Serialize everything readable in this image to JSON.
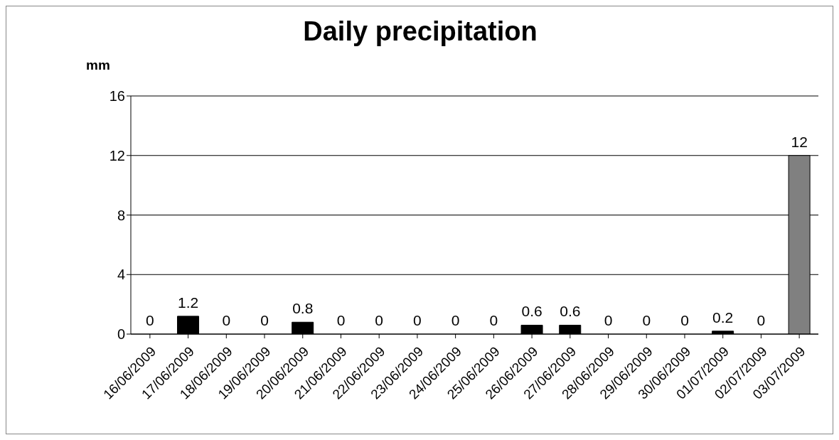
{
  "chart_data": {
    "type": "bar",
    "title": "Daily precipitation",
    "ylabel": "mm",
    "categories": [
      "16/06/2009",
      "17/06/2009",
      "18/06/2009",
      "19/06/2009",
      "20/06/2009",
      "21/06/2009",
      "22/06/2009",
      "23/06/2009",
      "24/06/2009",
      "25/06/2009",
      "26/06/2009",
      "27/06/2009",
      "28/06/2009",
      "29/06/2009",
      "30/06/2009",
      "01/07/2009",
      "02/07/2009",
      "03/07/2009"
    ],
    "values": [
      0,
      1.2,
      0,
      0,
      0.8,
      0,
      0,
      0,
      0,
      0,
      0.6,
      0.6,
      0,
      0,
      0,
      0.2,
      0,
      12
    ],
    "colors": [
      "#000000",
      "#000000",
      "#000000",
      "#000000",
      "#000000",
      "#000000",
      "#000000",
      "#000000",
      "#000000",
      "#000000",
      "#000000",
      "#000000",
      "#000000",
      "#000000",
      "#000000",
      "#000000",
      "#000000",
      "#808080"
    ],
    "ylim": [
      0,
      16
    ],
    "yticks": [
      0,
      4,
      8,
      12,
      16
    ],
    "grid": "y",
    "data_labels": true
  }
}
